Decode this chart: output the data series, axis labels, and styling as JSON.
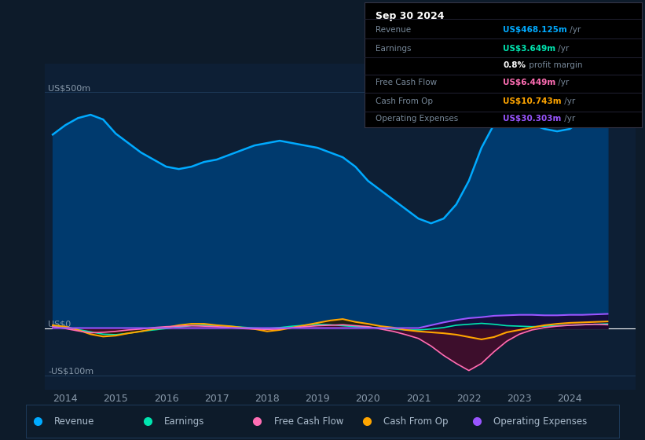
{
  "bg_color": "#0d1b2a",
  "plot_bg_color": "#0d1f35",
  "ylabel_top": "US$500m",
  "ylabel_mid": "US$0",
  "ylabel_bot": "-US$100m",
  "ylim": [
    -130,
    560
  ],
  "grid_color": "#1e3a5a",
  "text_color": "#8899aa",
  "zero_line_color": "#ffffff",
  "series": {
    "Revenue": {
      "color": "#00aaff",
      "fill_color": "#003a6e",
      "fill_alpha": 1.0,
      "lw": 1.8,
      "zorder_fill": 2,
      "zorder_line": 6,
      "years": [
        2013.75,
        2014.0,
        2014.25,
        2014.5,
        2014.75,
        2015.0,
        2015.25,
        2015.5,
        2015.75,
        2016.0,
        2016.25,
        2016.5,
        2016.75,
        2017.0,
        2017.25,
        2017.5,
        2017.75,
        2018.0,
        2018.25,
        2018.5,
        2018.75,
        2019.0,
        2019.25,
        2019.5,
        2019.75,
        2020.0,
        2020.25,
        2020.5,
        2020.75,
        2021.0,
        2021.25,
        2021.5,
        2021.75,
        2022.0,
        2022.25,
        2022.5,
        2022.75,
        2023.0,
        2023.25,
        2023.5,
        2023.75,
        2024.0,
        2024.25,
        2024.5,
        2024.75
      ],
      "values": [
        410,
        430,
        445,
        452,
        442,
        412,
        392,
        372,
        357,
        342,
        337,
        342,
        352,
        357,
        367,
        377,
        387,
        392,
        397,
        392,
        387,
        382,
        372,
        362,
        342,
        312,
        292,
        272,
        252,
        232,
        222,
        232,
        262,
        312,
        382,
        432,
        472,
        462,
        432,
        422,
        417,
        422,
        442,
        462,
        482
      ]
    },
    "Earnings": {
      "color": "#00e5b0",
      "fill_color": "#003322",
      "fill_alpha": 0.7,
      "lw": 1.2,
      "zorder_fill": 3,
      "zorder_line": 7,
      "years": [
        2013.75,
        2014.0,
        2014.25,
        2014.5,
        2014.75,
        2015.0,
        2015.25,
        2015.5,
        2015.75,
        2016.0,
        2016.25,
        2016.5,
        2016.75,
        2017.0,
        2017.25,
        2017.5,
        2017.75,
        2018.0,
        2018.25,
        2018.5,
        2018.75,
        2019.0,
        2019.25,
        2019.5,
        2019.75,
        2020.0,
        2020.25,
        2020.5,
        2020.75,
        2021.0,
        2021.25,
        2021.5,
        2021.75,
        2022.0,
        2022.25,
        2022.5,
        2022.75,
        2023.0,
        2023.25,
        2023.5,
        2023.75,
        2024.0,
        2024.25,
        2024.5,
        2024.75
      ],
      "values": [
        5,
        2,
        -3,
        -8,
        -13,
        -14,
        -11,
        -7,
        -4,
        -1,
        2,
        5,
        6,
        5,
        4,
        2,
        0,
        -1,
        1,
        4,
        6,
        8,
        7,
        5,
        3,
        2,
        0,
        -2,
        -4,
        -4,
        -2,
        1,
        6,
        8,
        10,
        8,
        5,
        4,
        3,
        4,
        5,
        6,
        7,
        8,
        9
      ]
    },
    "FreeCashFlow": {
      "color": "#ff6eb4",
      "fill_color": "#4a0a2a",
      "fill_alpha": 0.8,
      "lw": 1.2,
      "zorder_fill": 4,
      "zorder_line": 8,
      "years": [
        2013.75,
        2014.0,
        2014.25,
        2014.5,
        2014.75,
        2015.0,
        2015.25,
        2015.5,
        2015.75,
        2016.0,
        2016.25,
        2016.5,
        2016.75,
        2017.0,
        2017.25,
        2017.5,
        2017.75,
        2018.0,
        2018.25,
        2018.5,
        2018.75,
        2019.0,
        2019.25,
        2019.5,
        2019.75,
        2020.0,
        2020.25,
        2020.5,
        2020.75,
        2021.0,
        2021.25,
        2021.5,
        2021.75,
        2022.0,
        2022.25,
        2022.5,
        2022.75,
        2023.0,
        2023.25,
        2023.5,
        2023.75,
        2024.0,
        2024.25,
        2024.5,
        2024.75
      ],
      "values": [
        3,
        -1,
        -6,
        -10,
        -9,
        -7,
        -4,
        -2,
        1,
        3,
        4,
        5,
        4,
        3,
        1,
        -1,
        -2,
        -3,
        -2,
        1,
        3,
        5,
        6,
        7,
        5,
        3,
        -2,
        -7,
        -14,
        -22,
        -38,
        -58,
        -75,
        -90,
        -75,
        -50,
        -28,
        -13,
        -4,
        1,
        4,
        6,
        7,
        8,
        7
      ]
    },
    "CashFromOp": {
      "color": "#ffa500",
      "fill_color": "#2a1a00",
      "fill_alpha": 0.8,
      "lw": 1.5,
      "zorder_fill": 3,
      "zorder_line": 7,
      "years": [
        2013.75,
        2014.0,
        2014.25,
        2014.5,
        2014.75,
        2015.0,
        2015.25,
        2015.5,
        2015.75,
        2016.0,
        2016.25,
        2016.5,
        2016.75,
        2017.0,
        2017.25,
        2017.5,
        2017.75,
        2018.0,
        2018.25,
        2018.5,
        2018.75,
        2019.0,
        2019.25,
        2019.5,
        2019.75,
        2020.0,
        2020.25,
        2020.5,
        2020.75,
        2021.0,
        2021.25,
        2021.5,
        2021.75,
        2022.0,
        2022.25,
        2022.5,
        2022.75,
        2023.0,
        2023.25,
        2023.5,
        2023.75,
        2024.0,
        2024.25,
        2024.5,
        2024.75
      ],
      "values": [
        6,
        3,
        -4,
        -13,
        -18,
        -16,
        -11,
        -7,
        -2,
        1,
        6,
        9,
        9,
        6,
        4,
        1,
        -2,
        -7,
        -4,
        1,
        6,
        11,
        16,
        19,
        13,
        9,
        4,
        1,
        -4,
        -7,
        -9,
        -11,
        -14,
        -19,
        -24,
        -19,
        -9,
        -4,
        1,
        6,
        9,
        11,
        12,
        13,
        14
      ]
    },
    "OperatingExpenses": {
      "color": "#9955ff",
      "fill_color": "#1a0535",
      "fill_alpha": 0.8,
      "lw": 1.5,
      "zorder_fill": 5,
      "zorder_line": 9,
      "years": [
        2013.75,
        2014.0,
        2014.25,
        2014.5,
        2014.75,
        2015.0,
        2015.25,
        2015.5,
        2015.75,
        2016.0,
        2016.25,
        2016.5,
        2016.75,
        2017.0,
        2017.25,
        2017.5,
        2017.75,
        2018.0,
        2018.25,
        2018.5,
        2018.75,
        2019.0,
        2019.25,
        2019.5,
        2019.75,
        2020.0,
        2020.25,
        2020.5,
        2020.75,
        2021.0,
        2021.25,
        2021.5,
        2021.75,
        2022.0,
        2022.25,
        2022.5,
        2022.75,
        2023.0,
        2023.25,
        2023.5,
        2023.75,
        2024.0,
        2024.25,
        2024.5,
        2024.75
      ],
      "values": [
        0,
        0,
        0,
        0,
        0,
        0,
        0,
        0,
        0,
        0,
        0,
        0,
        0,
        0,
        0,
        0,
        0,
        0,
        0,
        0,
        0,
        0,
        0,
        0,
        0,
        0,
        0,
        0,
        0,
        0,
        6,
        12,
        17,
        21,
        23,
        26,
        27,
        28,
        28,
        27,
        27,
        28,
        28,
        29,
        30
      ]
    }
  },
  "xticks": [
    2014,
    2015,
    2016,
    2017,
    2018,
    2019,
    2020,
    2021,
    2022,
    2023,
    2024
  ],
  "legend_items": [
    {
      "label": "Revenue",
      "color": "#00aaff"
    },
    {
      "label": "Earnings",
      "color": "#00e5b0"
    },
    {
      "label": "Free Cash Flow",
      "color": "#ff6eb4"
    },
    {
      "label": "Cash From Op",
      "color": "#ffa500"
    },
    {
      "label": "Operating Expenses",
      "color": "#9955ff"
    }
  ],
  "info_box": {
    "date": "Sep 30 2024",
    "rows": [
      {
        "label": "Revenue",
        "value": "US$468.125m",
        "value_color": "#00aaff",
        "suffix": " /yr",
        "indent": false
      },
      {
        "label": "Earnings",
        "value": "US$3.649m",
        "value_color": "#00e5b0",
        "suffix": " /yr",
        "indent": false
      },
      {
        "label": "",
        "value": "0.8%",
        "value_color": "#ffffff",
        "suffix": " profit margin",
        "indent": true
      },
      {
        "label": "Free Cash Flow",
        "value": "US$6.449m",
        "value_color": "#ff6eb4",
        "suffix": " /yr",
        "indent": false
      },
      {
        "label": "Cash From Op",
        "value": "US$10.743m",
        "value_color": "#ffa500",
        "suffix": " /yr",
        "indent": false
      },
      {
        "label": "Operating Expenses",
        "value": "US$30.303m",
        "value_color": "#9955ff",
        "suffix": " /yr",
        "indent": false
      }
    ]
  }
}
